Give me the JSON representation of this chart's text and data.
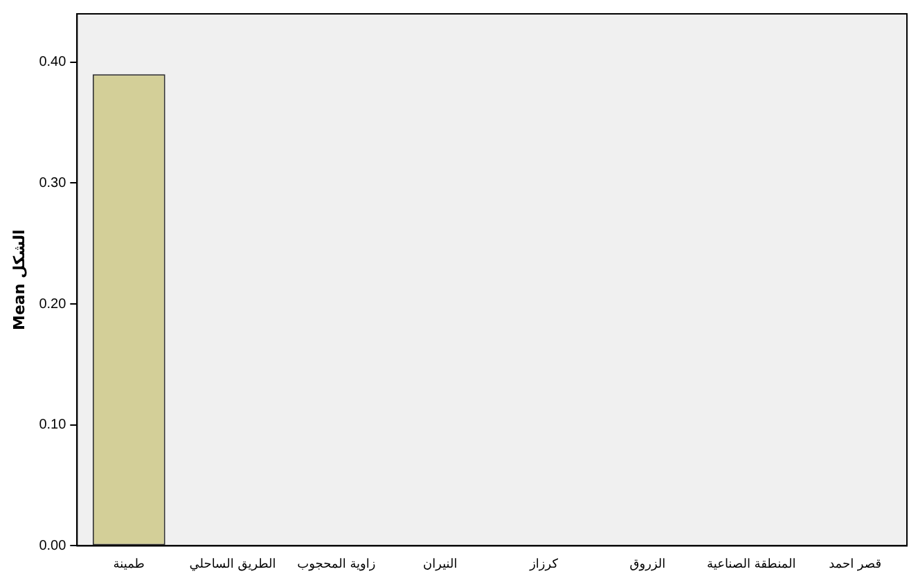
{
  "chart_data": {
    "type": "bar",
    "ylabel": "Mean الشكل",
    "categories": [
      "طمينة",
      "الطريق الساحلي",
      "زاوية المحجوب",
      "النيران",
      "كرزاز",
      "الزروق",
      "المنطقة الصناعية",
      "قصر احمد"
    ],
    "values": [
      0.39,
      0,
      0,
      0,
      0,
      0,
      0,
      0
    ],
    "color": "#d3cf98",
    "ylim": [
      0,
      0.44
    ],
    "yticks": [
      {
        "value": 0,
        "label": "0.00"
      },
      {
        "value": 0.1,
        "label": "0.10"
      },
      {
        "value": 0.2,
        "label": "0.20"
      },
      {
        "value": 0.3,
        "label": "0.30"
      },
      {
        "value": 0.4,
        "label": "0.40"
      }
    ],
    "grid": false
  }
}
